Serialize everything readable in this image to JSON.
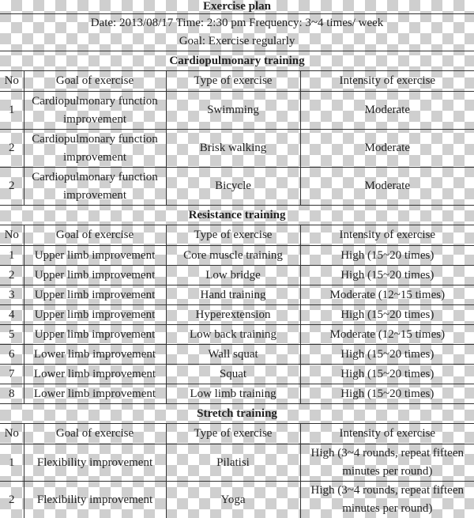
{
  "title": "Exercise plan",
  "info": "Date: 2013/08/17 Time: 2:30 pm Frequency: 3~4 times/ week",
  "goal": "Goal: Exercise regularly",
  "headers": {
    "no": "No",
    "goal": "Goal of exercise",
    "type": "Type of exercise",
    "intensity": "Intensity of exercise"
  },
  "sections": [
    {
      "title": "Cardiopulmonary training",
      "rows": [
        {
          "no": "1",
          "goal": "Cardiopulmonary function improvement",
          "type": "Swimming",
          "intensity": "Moderate"
        },
        {
          "no": "2",
          "goal": "Cardiopulmonary function improvement",
          "type": "Brisk walking",
          "intensity": "Moderate"
        },
        {
          "no": "2",
          "goal": "Cardiopulmonary function improvement",
          "type": "Bicycle",
          "intensity": "Moderate"
        }
      ]
    },
    {
      "title": "Resistance training",
      "rows": [
        {
          "no": "1",
          "goal": "Upper limb improvement",
          "type": "Core muscle training",
          "intensity": "High (15~20 times)"
        },
        {
          "no": "2",
          "goal": "Upper limb improvement",
          "type": "Low bridge",
          "intensity": "High (15~20 times)"
        },
        {
          "no": "3",
          "goal": "Upper limb improvement",
          "type": "Hand training",
          "intensity": "Moderate (12~15 times)"
        },
        {
          "no": "4",
          "goal": "Upper limb improvement",
          "type": "Hyperextension",
          "intensity": "High (15~20 times)"
        },
        {
          "no": "5",
          "goal": "Upper limb improvement",
          "type": "Low back training",
          "intensity": "Moderate (12~15 times)"
        },
        {
          "no": "6",
          "goal": "Lower limb improvement",
          "type": "Wall squat",
          "intensity": "High (15~20 times)"
        },
        {
          "no": "7",
          "goal": "Lower limb improvement",
          "type": "Squat",
          "intensity": "High (15~20 times)"
        },
        {
          "no": "8",
          "goal": "Lower limb improvement",
          "type": "Low limb training",
          "intensity": "High (15~20 times)"
        }
      ]
    },
    {
      "title": "Stretch training",
      "rows": [
        {
          "no": "1",
          "goal": "Flexibility improvement",
          "type": "Pilatisi",
          "intensity": "High (3~4 rounds, repeat fifteen minutes per round)"
        },
        {
          "no": "2",
          "goal": "Flexibility improvement",
          "type": "Yoga",
          "intensity": "High (3~4 rounds, repeat fifteen minutes per round)"
        }
      ]
    }
  ]
}
